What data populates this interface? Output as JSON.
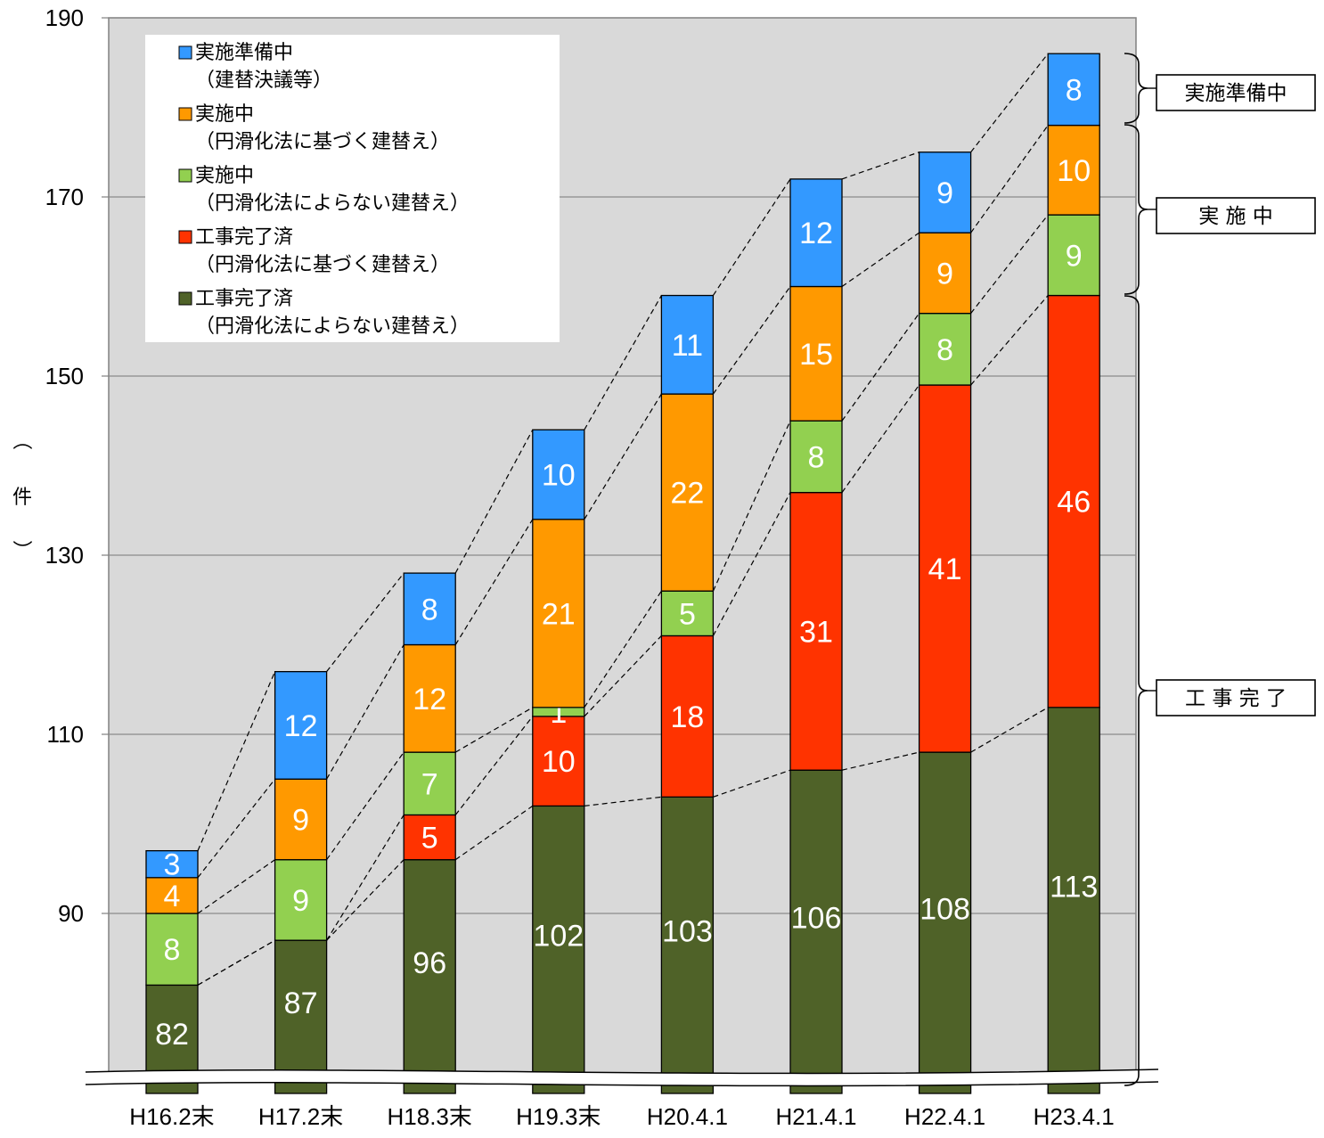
{
  "chart_data": {
    "type": "bar",
    "stacked": true,
    "categories": [
      "H16.2末",
      "H17.2末",
      "H18.3末",
      "H19.3末",
      "H20.4.1",
      "H21.4.1",
      "H22.4.1",
      "H23.4.1"
    ],
    "series": [
      {
        "name": "工事完了済（円滑化法によらない建替え）",
        "color": "#4f6228",
        "values": [
          82,
          87,
          96,
          102,
          103,
          106,
          108,
          113
        ]
      },
      {
        "name": "工事完了済（円滑化法に基づく建替え）",
        "color": "#ff3300",
        "values": [
          0,
          0,
          5,
          10,
          18,
          31,
          41,
          46
        ]
      },
      {
        "name": "実施中（円滑化法によらない建替え）",
        "color": "#92d050",
        "values": [
          8,
          9,
          7,
          1,
          5,
          8,
          8,
          9
        ]
      },
      {
        "name": "実施中（円滑化法に基づく建替え）",
        "color": "#ff9900",
        "values": [
          4,
          9,
          12,
          21,
          22,
          15,
          9,
          10
        ]
      },
      {
        "name": "実施準備中（建替決議等）",
        "color": "#3399ff",
        "values": [
          3,
          12,
          8,
          10,
          11,
          12,
          9,
          8
        ]
      }
    ],
    "legend_lines": [
      {
        "line1": "実施準備中",
        "line2": "（建替決議等）"
      },
      {
        "line1": "実施中",
        "line2": "（円滑化法に基づく建替え）"
      },
      {
        "line1": "実施中",
        "line2": "（円滑化法によらない建替え）"
      },
      {
        "line1": "工事完了済",
        "line2": "（円滑化法に基づく建替え）"
      },
      {
        "line1": "工事完了済",
        "line2": "（円滑化法によらない建替え）"
      }
    ],
    "yticks": [
      "190",
      "170",
      "150",
      "130",
      "110",
      "90"
    ],
    "ylabel": "（件）",
    "ylim_visible": [
      85,
      190
    ],
    "axis_break": true,
    "grid": true,
    "legend_position": "top-left",
    "groups": [
      "実施準備中",
      "実 施 中",
      "工 事 完 了"
    ]
  }
}
